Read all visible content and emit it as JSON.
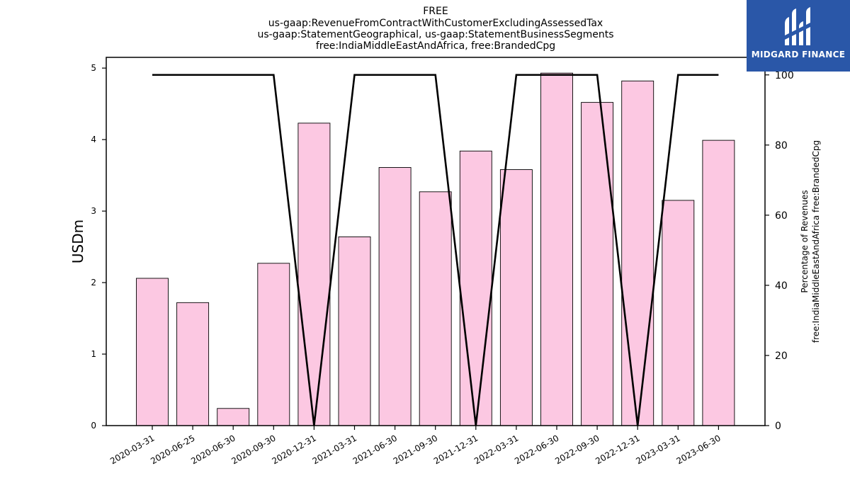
{
  "brand": {
    "name": "MIDGARD FINANCE",
    "color": "#2a57a8"
  },
  "chart_data": {
    "type": "bar",
    "title_lines": [
      "FREE",
      "us-gaap:RevenueFromContractWithCustomerExcludingAssessedTax",
      "us-gaap:StatementGeographical, us-gaap:StatementBusinessSegments",
      "free:IndiaMiddleEastAndAfrica, free:BrandedCpg"
    ],
    "categories": [
      "2020-03-31",
      "2020-06-25",
      "2020-06-30",
      "2020-09-30",
      "2020-12-31",
      "2021-03-31",
      "2021-06-30",
      "2021-09-30",
      "2021-12-31",
      "2022-03-31",
      "2022-06-30",
      "2022-09-30",
      "2022-12-31",
      "2023-03-31",
      "2023-06-30"
    ],
    "series": [
      {
        "axis": "left",
        "type": "bar",
        "color": "#fcc8e2",
        "values": [
          2.06,
          1.72,
          0.24,
          2.27,
          4.23,
          2.64,
          3.61,
          3.27,
          3.84,
          3.58,
          4.93,
          4.52,
          4.82,
          3.15,
          3.99
        ]
      },
      {
        "axis": "right",
        "type": "line",
        "color": "#000000",
        "values": [
          100,
          100,
          100,
          100,
          0,
          100,
          100,
          100,
          0,
          100,
          100,
          100,
          0,
          100,
          100
        ]
      }
    ],
    "ylabel": "USDm",
    "ylim": [
      0,
      5.15
    ],
    "yticks": [
      0,
      1,
      2,
      3,
      4,
      5
    ],
    "y2label_lines": [
      "Percentage of Revenues",
      "free:IndiaMiddleEastAndAfrica free:BrandedCpg"
    ],
    "y2lim": [
      0,
      105
    ],
    "y2ticks": [
      0,
      20,
      40,
      60,
      80,
      100
    ],
    "grid": false,
    "legend": "none"
  }
}
